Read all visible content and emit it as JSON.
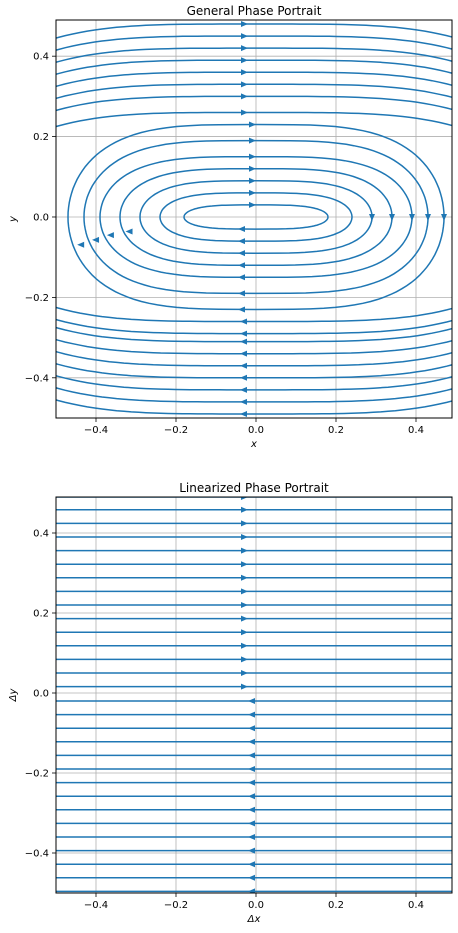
{
  "chart_data": [
    {
      "type": "streamplot",
      "title": "General Phase Portrait",
      "xlabel": "x",
      "ylabel": "y",
      "xlim": [
        -0.5,
        0.49
      ],
      "ylim": [
        -0.5,
        0.49
      ],
      "xticks": [
        -0.4,
        -0.2,
        0.0,
        0.2,
        0.4
      ],
      "yticks": [
        -0.4,
        -0.2,
        0.0,
        0.2,
        0.4
      ],
      "xtick_labels": [
        "−0.4",
        "−0.2",
        "0.0",
        "0.2",
        "0.4"
      ],
      "ytick_labels": [
        "−0.4",
        "−0.2",
        "0.0",
        "0.2",
        "0.4"
      ],
      "grid": true,
      "color": "#1f77b4",
      "closed_orbits": [
        {
          "rx": 0.18,
          "ry": 0.03
        },
        {
          "rx": 0.24,
          "ry": 0.06
        },
        {
          "rx": 0.29,
          "ry": 0.09
        },
        {
          "rx": 0.34,
          "ry": 0.12
        },
        {
          "rx": 0.39,
          "ry": 0.15
        },
        {
          "rx": 0.43,
          "ry": 0.19
        },
        {
          "rx": 0.47,
          "ry": 0.23
        }
      ],
      "upper_flow_y": [
        0.26,
        0.3,
        0.33,
        0.36,
        0.39,
        0.42,
        0.45,
        0.48
      ],
      "lower_flow_y": [
        -0.26,
        -0.29,
        -0.31,
        -0.34,
        -0.37,
        -0.4,
        -0.43,
        -0.46,
        -0.49
      ],
      "upper_direction": "right",
      "lower_direction": "left"
    },
    {
      "type": "streamplot",
      "title": "Linearized Phase Portrait",
      "xlabel": "Δx",
      "ylabel": "Δy",
      "xlim": [
        -0.5,
        0.49
      ],
      "ylim": [
        -0.5,
        0.49
      ],
      "xticks": [
        -0.4,
        -0.2,
        0.0,
        0.2,
        0.4
      ],
      "yticks": [
        -0.4,
        -0.2,
        0.0,
        0.2,
        0.4
      ],
      "xtick_labels": [
        "−0.4",
        "−0.2",
        "0.0",
        "0.2",
        "0.4"
      ],
      "ytick_labels": [
        "−0.4",
        "−0.2",
        "0.0",
        "0.2",
        "0.4"
      ],
      "grid": true,
      "color": "#1f77b4",
      "flow_y": [
        0.49,
        0.458,
        0.424,
        0.39,
        0.356,
        0.322,
        0.288,
        0.254,
        0.22,
        0.186,
        0.152,
        0.118,
        0.084,
        0.05,
        0.016,
        -0.02,
        -0.054,
        -0.088,
        -0.122,
        -0.156,
        -0.19,
        -0.224,
        -0.258,
        -0.292,
        -0.326,
        -0.36,
        -0.394,
        -0.428,
        -0.462,
        -0.496
      ],
      "direction_rule": "positive y flows right, negative y flows left"
    }
  ]
}
